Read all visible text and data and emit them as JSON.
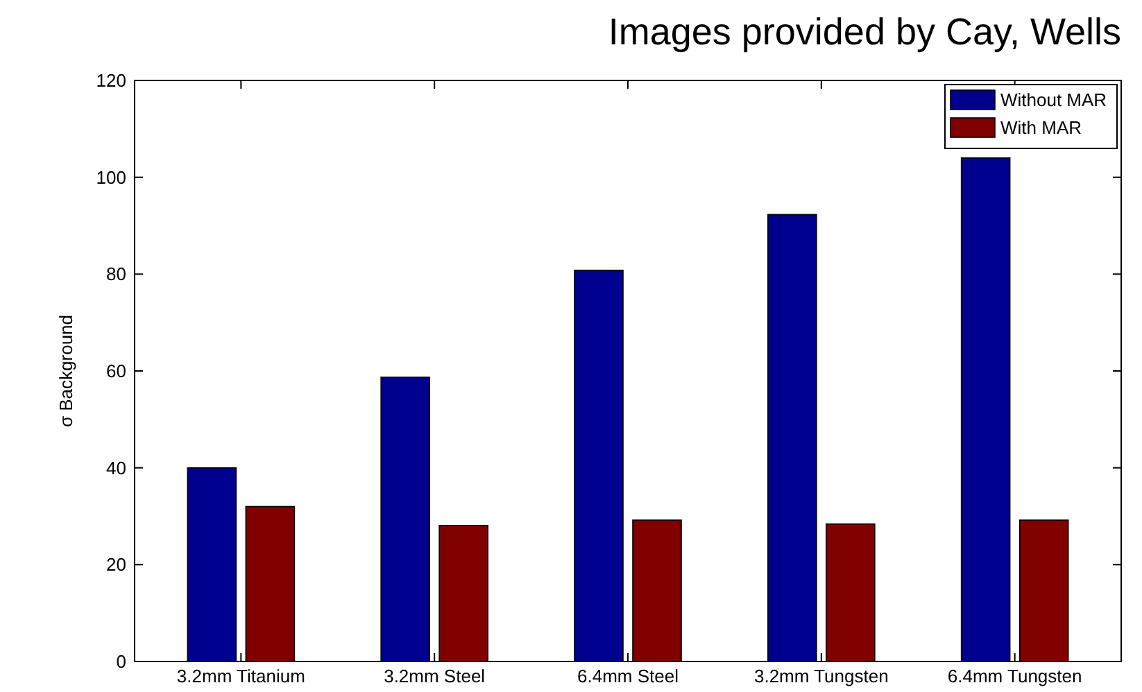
{
  "chart_data": {
    "type": "bar",
    "annotations": [
      "Images provided by Cay, Wells"
    ],
    "ylabel": "σ Background",
    "categories": [
      "3.2mm Titanium",
      "3.2mm Steel",
      "6.4mm Steel",
      "3.2mm Tungsten",
      "6.4mm Tungsten"
    ],
    "series": [
      {
        "name": "Without MAR",
        "color": "#00008f",
        "values": [
          40,
          58.7,
          80.8,
          92.3,
          104
        ]
      },
      {
        "name": "With MAR",
        "color": "#800000",
        "values": [
          32,
          28.1,
          29.2,
          28.4,
          29.2
        ]
      }
    ],
    "ylim": [
      0,
      120
    ],
    "yticks": [
      0,
      20,
      40,
      60,
      80,
      100,
      120
    ],
    "grid": false,
    "legend": "top right"
  }
}
